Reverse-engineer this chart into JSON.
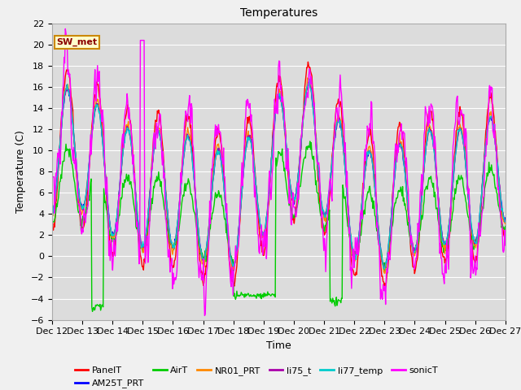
{
  "title": "Temperatures",
  "xlabel": "Time",
  "ylabel": "Temperature (C)",
  "ylim": [
    -6,
    22
  ],
  "xlim": [
    12,
    27
  ],
  "x_ticks": [
    12,
    13,
    14,
    15,
    16,
    17,
    18,
    19,
    20,
    21,
    22,
    23,
    24,
    25,
    26,
    27
  ],
  "x_tick_labels": [
    "Dec 12",
    "Dec 13",
    "Dec 14",
    "Dec 15",
    "Dec 16",
    "Dec 17",
    "Dec 18",
    "Dec 19",
    "Dec 20",
    "Dec 21",
    "Dec 22",
    "Dec 23",
    "Dec 24",
    "Dec 25",
    "Dec 26",
    "Dec 27"
  ],
  "y_ticks": [
    -6,
    -4,
    -2,
    0,
    2,
    4,
    6,
    8,
    10,
    12,
    14,
    16,
    18,
    20,
    22
  ],
  "series_order": [
    "PanelT",
    "AM25T_PRT",
    "AirT",
    "NR01_PRT",
    "li75_t",
    "li77_temp",
    "sonicT"
  ],
  "series": {
    "PanelT": {
      "color": "#ff0000",
      "lw": 1.0
    },
    "AM25T_PRT": {
      "color": "#0000ff",
      "lw": 1.0
    },
    "AirT": {
      "color": "#00cc00",
      "lw": 1.0
    },
    "NR01_PRT": {
      "color": "#ff8800",
      "lw": 1.0
    },
    "li75_t": {
      "color": "#aa00aa",
      "lw": 1.0
    },
    "li77_temp": {
      "color": "#00cccc",
      "lw": 1.0
    },
    "sonicT": {
      "color": "#ff00ff",
      "lw": 1.0
    }
  },
  "legend_label": "SW_met",
  "legend_row1": [
    "PanelT",
    "AM25T_PRT",
    "AirT",
    "NR01_PRT",
    "li75_t",
    "li77_temp"
  ],
  "legend_row2": [
    "sonicT"
  ],
  "bg_color": "#dcdcdc",
  "fig_bg": "#f0f0f0",
  "grid_color": "#ffffff",
  "title_fontsize": 10,
  "axis_label_fontsize": 9,
  "tick_fontsize": 8,
  "legend_fontsize": 8
}
